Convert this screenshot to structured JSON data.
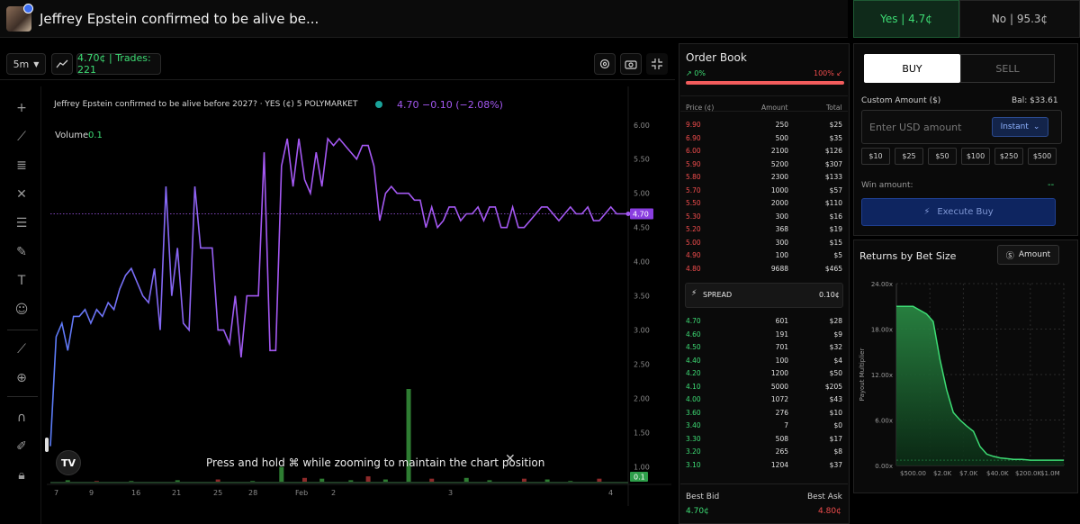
{
  "header": {
    "market_title": "Jeffrey Epstein confirmed to be alive be...",
    "yes_tab": "Yes | 4.7¢",
    "no_tab": "No | 95.3¢"
  },
  "toolbar": {
    "interval": "5m",
    "interval_icon": "chevron-down-icon",
    "chart_type_icon": "trend-line-icon",
    "price_trades": "4.70¢ | Trades: 221",
    "settings_icon": "gear-icon",
    "camera_icon": "camera-icon",
    "collapse_icon": "collapse-icon"
  },
  "left_tools": [
    "crosshair-icon",
    "trend-line-icon",
    "fib-icon",
    "pattern-icon",
    "measure-icon",
    "brush-icon",
    "text-icon",
    "emoji-icon",
    "ruler-icon",
    "zoom-in-icon",
    "magnet-icon",
    "lock-drawing-icon",
    "lock-icon"
  ],
  "chart": {
    "legend_title": "Jeffrey Epstein confirmed to be alive before 2027? · YES (¢)   5   POLYMARKET",
    "legend_values": "4.70  −0.10 (−2.08%)",
    "volume_label": "Volume",
    "volume_value": "0.1",
    "last_price_tag": "4.70",
    "last_volume_tag": "0.1",
    "zoom_hint": "Press and hold ⌘ while zooming to maintain the chart position",
    "logo": "TV",
    "colors": {
      "line_start": "#5b7cf7",
      "line_end": "#a458f2",
      "volume_up": "#2e7d32",
      "volume_down": "#8e2a2a"
    }
  },
  "chart_data": {
    "type": "line",
    "y_ticks": [
      "6.00",
      "5.50",
      "5.00",
      "4.50",
      "4.00",
      "3.50",
      "3.00",
      "2.50",
      "2.00",
      "1.50",
      "1.00"
    ],
    "x_ticks": [
      "7",
      "9",
      "16",
      "21",
      "25",
      "28",
      "Feb",
      "2",
      "3",
      "4"
    ],
    "ylim": [
      0.9,
      6.3
    ],
    "xlim": [
      0,
      100
    ],
    "series": [
      {
        "x": [
          0,
          1,
          2,
          3,
          4,
          5,
          6,
          7,
          8,
          9,
          10,
          11,
          12,
          13,
          14,
          15,
          16,
          17,
          18,
          19,
          20,
          21,
          22,
          23,
          24,
          25,
          26,
          27,
          28,
          29,
          30,
          31,
          32,
          33,
          34,
          35,
          36,
          37,
          38,
          39,
          40,
          41,
          42,
          43,
          44,
          45,
          46,
          47,
          48,
          49,
          50,
          51,
          52,
          53,
          54,
          55,
          56,
          57,
          58,
          59,
          60,
          61,
          62,
          63,
          64,
          65,
          66,
          67,
          68,
          69,
          70,
          71,
          72,
          73,
          74,
          75,
          76,
          77,
          78,
          79,
          80,
          81,
          82,
          83,
          84,
          85,
          86,
          87,
          88,
          89,
          90,
          91,
          92,
          93,
          94,
          95,
          96,
          97,
          98,
          99,
          100
        ],
        "values": [
          1.3,
          2.9,
          3.1,
          2.7,
          3.2,
          3.2,
          3.3,
          3.1,
          3.3,
          3.2,
          3.4,
          3.3,
          3.6,
          3.8,
          3.9,
          3.7,
          3.5,
          3.4,
          3.9,
          3.0,
          5.1,
          3.5,
          4.2,
          3.1,
          3.0,
          5.1,
          4.2,
          4.2,
          4.2,
          3.0,
          3.0,
          2.8,
          3.5,
          2.6,
          3.5,
          3.5,
          3.5,
          5.6,
          2.7,
          2.7,
          5.4,
          5.8,
          5.1,
          5.8,
          5.2,
          5.0,
          5.6,
          5.1,
          5.8,
          5.7,
          5.8,
          5.7,
          5.6,
          5.5,
          5.7,
          5.7,
          5.4,
          4.6,
          5.0,
          5.1,
          5.0,
          5.0,
          5.0,
          4.9,
          4.9,
          4.5,
          4.8,
          4.5,
          4.6,
          4.8,
          4.8,
          4.6,
          4.7,
          4.7,
          4.8,
          4.6,
          4.8,
          4.8,
          4.5,
          4.5,
          4.8,
          4.5,
          4.5,
          4.6,
          4.7,
          4.8,
          4.8,
          4.7,
          4.6,
          4.7,
          4.8,
          4.7,
          4.7,
          4.8,
          4.6,
          4.6,
          4.7,
          4.8,
          4.7,
          4.7,
          4.7
        ]
      }
    ],
    "volume": {
      "x": [
        3,
        8,
        14,
        22,
        29,
        35,
        40,
        44,
        47,
        52,
        55,
        58,
        62,
        66,
        72,
        76,
        82,
        86,
        90,
        95
      ],
      "values": [
        0.3,
        0.2,
        0.2,
        0.3,
        0.4,
        0.2,
        2.0,
        0.6,
        0.5,
        0.3,
        0.8,
        0.4,
        12.0,
        0.5,
        0.6,
        0.3,
        0.5,
        0.4,
        0.2,
        0.5
      ]
    }
  },
  "orderbook": {
    "title": "Order Book",
    "up_pct": "↗ 0%",
    "down_pct": "100% ↙",
    "columns": [
      "Price (¢)",
      "Amount",
      "Total"
    ],
    "asks": [
      [
        "9.90",
        "250",
        "$25"
      ],
      [
        "6.90",
        "500",
        "$35"
      ],
      [
        "6.00",
        "2100",
        "$126"
      ],
      [
        "5.90",
        "5200",
        "$307"
      ],
      [
        "5.80",
        "2300",
        "$133"
      ],
      [
        "5.70",
        "1000",
        "$57"
      ],
      [
        "5.50",
        "2000",
        "$110"
      ],
      [
        "5.30",
        "300",
        "$16"
      ],
      [
        "5.20",
        "368",
        "$19"
      ],
      [
        "5.00",
        "300",
        "$15"
      ],
      [
        "4.90",
        "100",
        "$5"
      ],
      [
        "4.80",
        "9688",
        "$465"
      ]
    ],
    "spread_label": "SPREAD",
    "spread_value": "0.10¢",
    "bids": [
      [
        "4.70",
        "601",
        "$28"
      ],
      [
        "4.60",
        "191",
        "$9"
      ],
      [
        "4.50",
        "701",
        "$32"
      ],
      [
        "4.40",
        "100",
        "$4"
      ],
      [
        "4.20",
        "1200",
        "$50"
      ],
      [
        "4.10",
        "5000",
        "$205"
      ],
      [
        "4.00",
        "1072",
        "$43"
      ],
      [
        "3.60",
        "276",
        "$10"
      ],
      [
        "3.40",
        "7",
        "$0"
      ],
      [
        "3.30",
        "508",
        "$17"
      ],
      [
        "3.20",
        "265",
        "$8"
      ],
      [
        "3.10",
        "1204",
        "$37"
      ]
    ],
    "best_bid_label": "Best Bid",
    "best_ask_label": "Best Ask",
    "best_bid": "4.70¢",
    "best_ask": "4.80¢",
    "colors": {
      "ask": "#f24d4d",
      "bid": "#3ddc74"
    }
  },
  "trade": {
    "buy_label": "BUY",
    "sell_label": "SELL",
    "custom_amount_label": "Custom Amount ($)",
    "balance": "Bal: $33.61",
    "amount_placeholder": "Enter USD amount",
    "instant_label": "Instant",
    "quick_amounts": [
      "$10",
      "$25",
      "$50",
      "$100",
      "$250",
      "$500"
    ],
    "win_label": "Win amount:",
    "win_value": "--",
    "execute_label": "Execute Buy"
  },
  "returns": {
    "title": "Returns by Bet Size",
    "amount_button": "Amount",
    "chart_data": {
      "type": "area",
      "ylabel": "Payout Multiplier",
      "y_ticks": [
        "24.00x",
        "18.00x",
        "12.00x",
        "6.00x",
        "0.00x"
      ],
      "x_ticks": [
        "$500.00",
        "$2.0K",
        "$7.0K",
        "$40.0K",
        "$200.0K",
        "$1.0M"
      ],
      "ylim": [
        0,
        24
      ],
      "xlim": [
        0,
        100
      ],
      "x": [
        0,
        4,
        10,
        18,
        22,
        26,
        30,
        34,
        38,
        42,
        46,
        50,
        54,
        58,
        62,
        66,
        70,
        75,
        80,
        85,
        90,
        95,
        100
      ],
      "values": [
        21.0,
        21.0,
        21.0,
        20.0,
        19.0,
        14.0,
        10.0,
        7.0,
        6.0,
        5.2,
        4.5,
        2.5,
        1.5,
        1.2,
        1.0,
        0.9,
        0.8,
        0.8,
        0.7,
        0.7,
        0.7,
        0.7,
        0.7
      ],
      "colors": {
        "line": "#3ddc74",
        "fill_top": "#2a8c45",
        "fill_bottom": "#0a2a14"
      }
    }
  }
}
